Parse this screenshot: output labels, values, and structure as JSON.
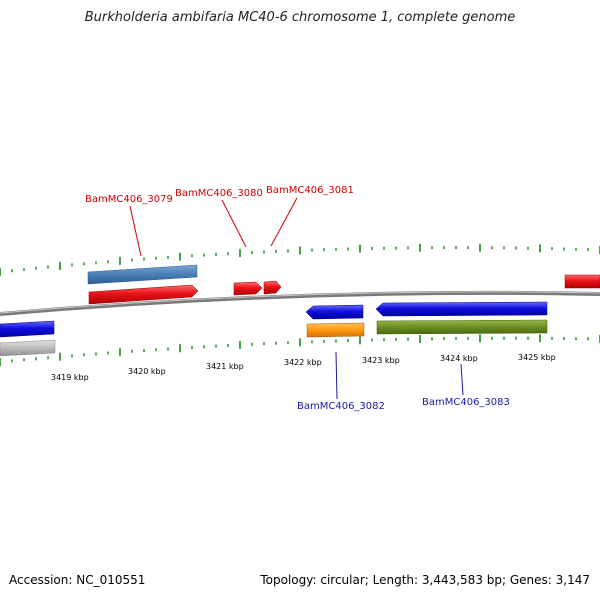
{
  "title": "Burkholderia ambifaria MC40-6 chromosome 1, complete genome",
  "footer": {
    "accession": "Accession: NC_010551",
    "summary": "Topology: circular; Length: 3,443,583 bp; Genes: 3,147"
  },
  "axis": {
    "unit": "kbp",
    "labels": [
      "3419 kbp",
      "3420 kbp",
      "3421 kbp",
      "3422 kbp",
      "3423 kbp",
      "3424 kbp",
      "3425 kbp"
    ]
  },
  "gene_labels": {
    "top": [
      "BamMC406_3079",
      "BamMC406_3080",
      "BamMC406_3081"
    ],
    "bottom": [
      "BamMC406_3082",
      "BamMC406_3083"
    ]
  },
  "colors": {
    "label_top": "#d40000",
    "label_bottom": "#1a1aa8",
    "tick": "#1a8a1a",
    "red": "#e8141a",
    "blue": "#1010e0",
    "steelblue": "#4a7eb4",
    "orange": "#ff9a10",
    "olive": "#6b8e23",
    "gray": "#bdbdbd"
  }
}
